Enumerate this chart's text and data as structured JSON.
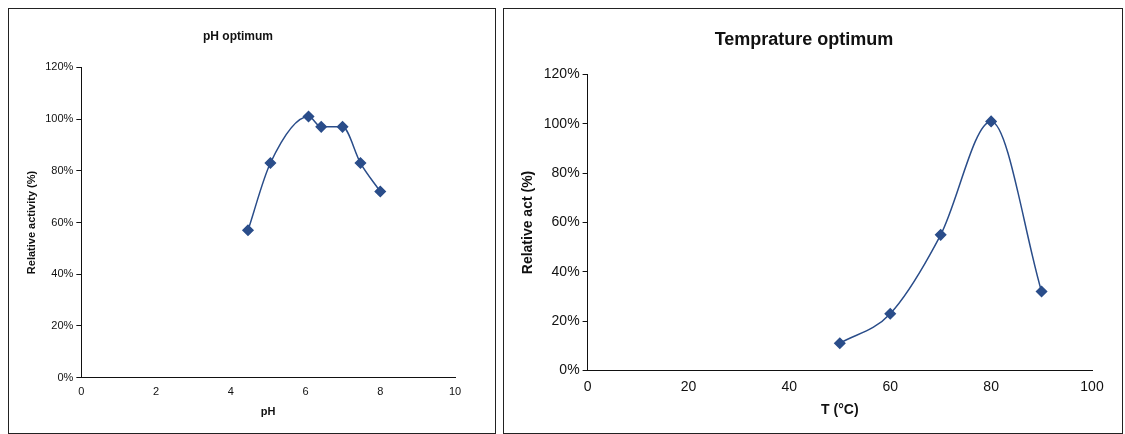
{
  "chart_data": [
    {
      "type": "line",
      "title": "pH optimum",
      "xlabel": "pH",
      "ylabel": "Relative activity (%)",
      "x": [
        4.46,
        5.06,
        6.08,
        6.42,
        6.99,
        7.47,
        8.0
      ],
      "series": [
        {
          "color": "#2a4d8a",
          "values": [
            57,
            83,
            101,
            97,
            97,
            83,
            72
          ]
        }
      ],
      "xlim": [
        0,
        10
      ],
      "xticks": [
        0,
        2,
        4,
        6,
        8,
        10
      ],
      "ylim": [
        0,
        120
      ],
      "yticks": [
        {
          "value": 0,
          "label": "0%"
        },
        {
          "value": 20,
          "label": "20%"
        },
        {
          "value": 40,
          "label": "40%"
        },
        {
          "value": 60,
          "label": "60%"
        },
        {
          "value": 80,
          "label": "80%"
        },
        {
          "value": 100,
          "label": "100%"
        },
        {
          "value": 120,
          "label": "120%"
        }
      ],
      "grid": false,
      "legend": false,
      "marker": "diamond",
      "line_style": "solid"
    },
    {
      "type": "line",
      "title": "Temprature optimum",
      "xlabel": "T (°C)",
      "ylabel": "Relative act (%)",
      "x": [
        50,
        60,
        70,
        80,
        90
      ],
      "series": [
        {
          "color": "#2a4d8a",
          "values": [
            11,
            23,
            55,
            101,
            32
          ]
        }
      ],
      "xlim": [
        0,
        100
      ],
      "xticks": [
        0,
        20,
        40,
        60,
        80,
        100
      ],
      "ylim": [
        0,
        120
      ],
      "yticks": [
        {
          "value": 0,
          "label": "0%"
        },
        {
          "value": 20,
          "label": "20%"
        },
        {
          "value": 40,
          "label": "40%"
        },
        {
          "value": 60,
          "label": "60%"
        },
        {
          "value": 80,
          "label": "80%"
        },
        {
          "value": 100,
          "label": "100%"
        },
        {
          "value": 120,
          "label": "120%"
        }
      ],
      "grid": false,
      "legend": false,
      "marker": "diamond",
      "line_style": "solid"
    }
  ]
}
